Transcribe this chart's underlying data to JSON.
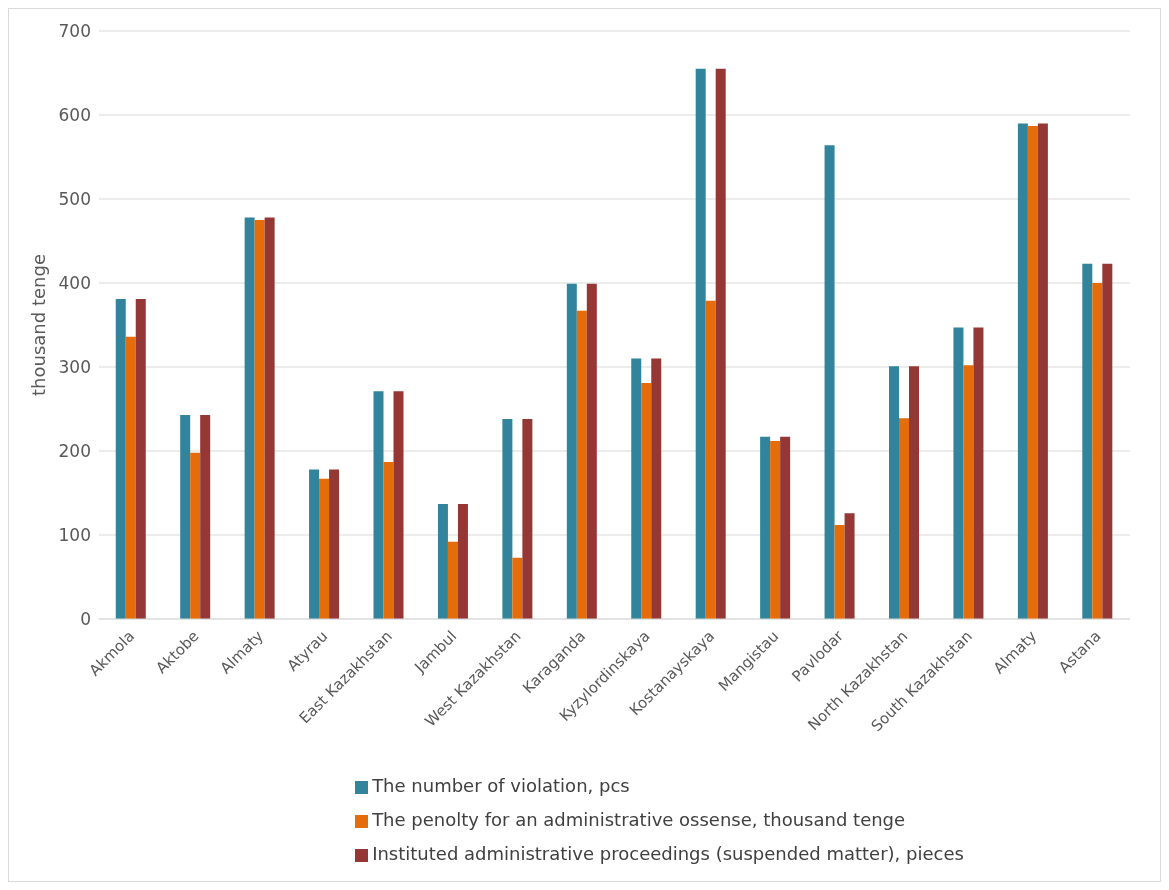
{
  "chart_data": {
    "type": "bar",
    "ylabel": "thousand tenge",
    "categories": [
      "Akmola",
      "Aktobe",
      "Almaty",
      "Atyrau",
      "East Kazakhstan",
      "Jambul",
      "West Kazakhstan",
      "Karaganda",
      "Kyzylordinskaya",
      "Kostanayskaya",
      "Mangistau",
      "Pavlodar",
      "North Kazakhstan",
      "South Kazakhstan",
      "Almaty",
      "Astana"
    ],
    "series": [
      {
        "name": "The number of violation, pcs",
        "color": "#31849b",
        "values": [
          381,
          243,
          478,
          178,
          271,
          137,
          238,
          399,
          310,
          655,
          217,
          564,
          301,
          347,
          590,
          423
        ]
      },
      {
        "name": "The penolty for an administrative ossense, thousand tenge",
        "color": "#e46c0a",
        "values": [
          336,
          198,
          475,
          167,
          187,
          92,
          73,
          367,
          281,
          379,
          212,
          112,
          239,
          302,
          587,
          400
        ]
      },
      {
        "name": "Instituted administrative proceedings (suspended matter), pieces",
        "color": "#953735",
        "values": [
          381,
          243,
          478,
          178,
          271,
          137,
          238,
          399,
          310,
          655,
          217,
          126,
          301,
          347,
          590,
          423
        ]
      }
    ],
    "ylim": [
      0,
      700
    ],
    "yticks": [
      0,
      100,
      200,
      300,
      400,
      500,
      600,
      700
    ],
    "grid": "y",
    "legend": "bottom"
  }
}
